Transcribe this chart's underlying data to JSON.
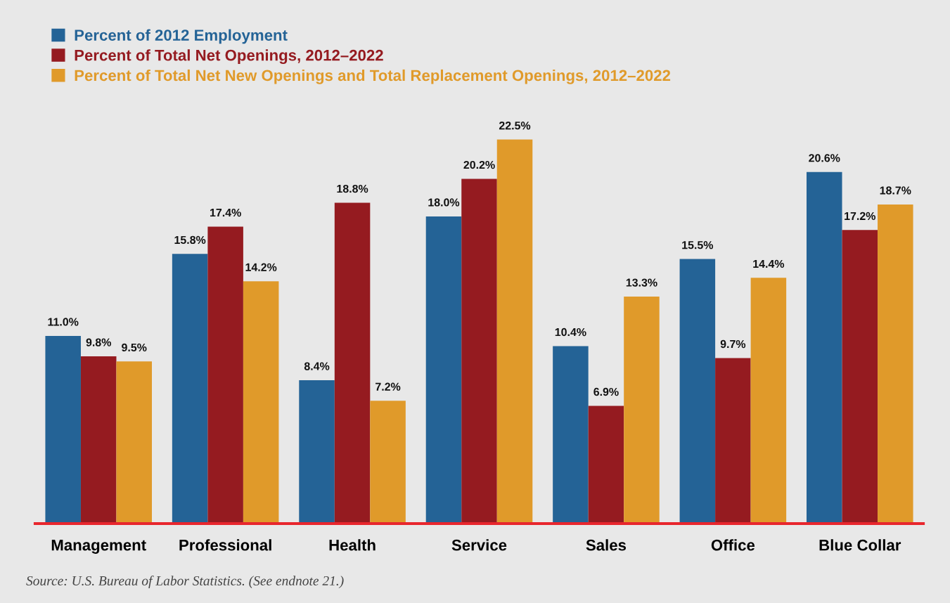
{
  "chart_data": {
    "type": "bar",
    "categories": [
      "Management",
      "Professional",
      "Health",
      "Service",
      "Sales",
      "Office",
      "Blue Collar"
    ],
    "series": [
      {
        "name": "Percent of 2012 Employment",
        "color": "#246396",
        "values": [
          11.0,
          15.8,
          8.4,
          18.0,
          10.4,
          15.5,
          20.6
        ],
        "value_labels": [
          "11.0%",
          "15.8%",
          "8.4%",
          "18.0%",
          "10.4%",
          "15.5%",
          "20.6%"
        ]
      },
      {
        "name": "Percent of Total Net Openings, 2012–2022",
        "color": "#951b20",
        "values": [
          9.8,
          17.4,
          18.8,
          20.2,
          6.9,
          9.7,
          17.2
        ],
        "value_labels": [
          "9.8%",
          "17.4%",
          "18.8%",
          "20.2%",
          "6.9%",
          "9.7%",
          "17.2%"
        ]
      },
      {
        "name": "Percent of Total Net New Openings and Total Replacement Openings, 2012–2022",
        "color": "#e09a2a",
        "values": [
          9.5,
          14.2,
          7.2,
          22.5,
          13.3,
          14.4,
          18.7
        ],
        "value_labels": [
          "9.5%",
          "14.2%",
          "7.2%",
          "22.5%",
          "13.3%",
          "14.4%",
          "18.7%"
        ]
      }
    ],
    "legend": "top left",
    "annotations": [
      "Source: U.S. Bureau of Labor Statistics. (See endnote 21.)"
    ]
  }
}
